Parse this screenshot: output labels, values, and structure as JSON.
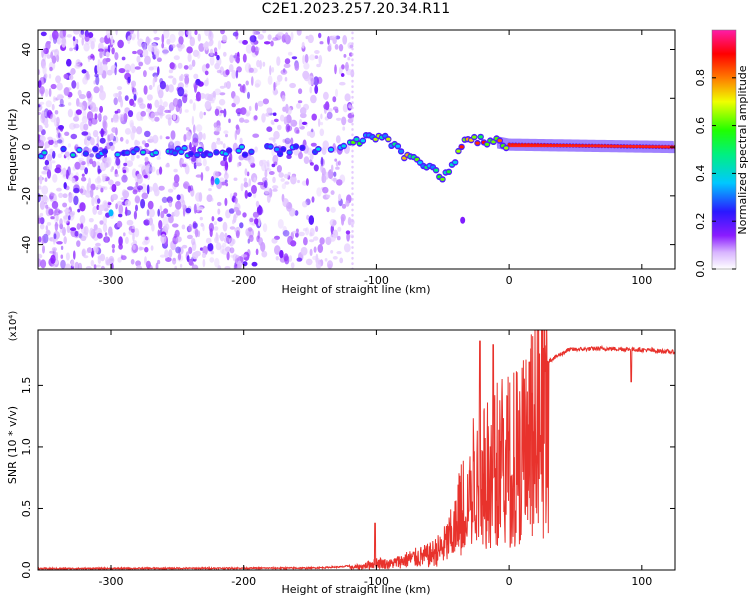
{
  "title": "C2E1.2023.257.20.34.R11",
  "colors": {
    "snr_line": "#e8322c",
    "spectrogram_noise": "#7a1fff",
    "axis": "#000000"
  },
  "colorbar": {
    "label": "Normalized spectral amplitude",
    "ticks": [
      "0.0",
      "0.2",
      "0.4",
      "0.6",
      "0.8"
    ],
    "range": [
      0,
      1
    ],
    "colormap": "rainbow (white → purple → blue → cyan → green → yellow → red → magenta)"
  },
  "chart_data": [
    {
      "type": "heatmap",
      "name": "spectrogram",
      "xlabel": "Height of straight line (km)",
      "ylabel": "Frequency (Hz)",
      "xlim": [
        -355,
        125
      ],
      "ylim": [
        -50,
        48
      ],
      "xticks": [
        -300,
        -200,
        -100,
        0,
        100
      ],
      "yticks": [
        -40,
        -20,
        0,
        20,
        40
      ],
      "xtick_labels": [
        "-300",
        "-200",
        "-100",
        "0",
        "100"
      ],
      "ytick_labels": [
        "-40",
        "-20",
        "0",
        "20",
        "40"
      ],
      "noise_region_x": [
        -355,
        -118
      ],
      "carrier_track": [
        {
          "x": -355,
          "y": -2
        },
        {
          "x": -250,
          "y": -2
        },
        {
          "x": -150,
          "y": -1
        },
        {
          "x": -120,
          "y": 1
        },
        {
          "x": -100,
          "y": 5
        },
        {
          "x": -90,
          "y": 3
        },
        {
          "x": -80,
          "y": -3
        },
        {
          "x": -70,
          "y": -6
        },
        {
          "x": -60,
          "y": -8
        },
        {
          "x": -50,
          "y": -12
        },
        {
          "x": -42,
          "y": -6
        },
        {
          "x": -35,
          "y": 1
        },
        {
          "x": -25,
          "y": 3
        },
        {
          "x": -10,
          "y": 2
        },
        {
          "x": 0,
          "y": 1
        },
        {
          "x": 125,
          "y": 0
        }
      ],
      "outliers": [
        {
          "x": -300,
          "y": -27
        },
        {
          "x": -220,
          "y": -14
        },
        {
          "x": -35,
          "y": -30
        }
      ],
      "grid": false
    },
    {
      "type": "line",
      "name": "snr",
      "xlabel": "Height of straight line (km)",
      "ylabel": "SNR (10 * v/v)",
      "scale_note": "(x10⁴)",
      "xlim": [
        -355,
        125
      ],
      "ylim": [
        0,
        1.95
      ],
      "xticks": [
        -300,
        -200,
        -100,
        0,
        100
      ],
      "yticks": [
        0.0,
        0.5,
        1.0,
        1.5
      ],
      "xtick_labels": [
        "-300",
        "-200",
        "-100",
        "0",
        "100"
      ],
      "ytick_labels": [
        "0.0",
        "0.5",
        "1.0",
        "1.5"
      ],
      "series": [
        {
          "envelope": [
            {
              "x": -355,
              "y": 0.005
            },
            {
              "x": -150,
              "y": 0.01
            },
            {
              "x": -125,
              "y": 0.02
            },
            {
              "x": -110,
              "y": 0.05
            },
            {
              "x": -100,
              "y": 0.1
            },
            {
              "x": -90,
              "y": 0.08
            },
            {
              "x": -75,
              "y": 0.15
            },
            {
              "x": -60,
              "y": 0.2
            },
            {
              "x": -50,
              "y": 0.3
            },
            {
              "x": -40,
              "y": 0.55
            },
            {
              "x": -30,
              "y": 0.95
            },
            {
              "x": -20,
              "y": 1.1
            },
            {
              "x": -10,
              "y": 1.15
            },
            {
              "x": 0,
              "y": 1.2
            },
            {
              "x": 10,
              "y": 1.3
            },
            {
              "x": 20,
              "y": 1.55
            },
            {
              "x": 30,
              "y": 1.7
            },
            {
              "x": 45,
              "y": 1.79
            },
            {
              "x": 70,
              "y": 1.8
            },
            {
              "x": 100,
              "y": 1.79
            },
            {
              "x": 125,
              "y": 1.77
            }
          ],
          "features": [
            {
              "x": -101,
              "y": 0.38
            },
            {
              "x": -22,
              "y": 1.86
            },
            {
              "x": -12,
              "y": 1.83
            },
            {
              "x": 92,
              "y": 1.92
            },
            {
              "x": 92,
              "y": 1.53
            }
          ]
        }
      ],
      "grid": false
    }
  ]
}
